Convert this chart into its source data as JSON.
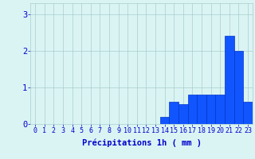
{
  "hours": [
    0,
    1,
    2,
    3,
    4,
    5,
    6,
    7,
    8,
    9,
    10,
    11,
    12,
    13,
    14,
    15,
    16,
    17,
    18,
    19,
    20,
    21,
    22,
    23
  ],
  "values": [
    0,
    0,
    0,
    0,
    0,
    0,
    0,
    0,
    0,
    0,
    0,
    0,
    0,
    0,
    0.2,
    0.6,
    0.55,
    0.8,
    0.8,
    0.8,
    0.8,
    2.4,
    2.0,
    0.6
  ],
  "bar_color": "#1155ff",
  "bar_edge_color": "#0033cc",
  "background_color": "#daf4f4",
  "grid_color": "#aacccc",
  "axis_label_color": "#0000cc",
  "tick_color": "#0000cc",
  "xlabel": "Précipitations 1h ( mm )",
  "ylim": [
    0,
    3.3
  ],
  "yticks": [
    0,
    1,
    2,
    3
  ],
  "xlabel_fontsize": 7.5,
  "tick_fontsize": 6.0,
  "ytick_fontsize": 7.5
}
